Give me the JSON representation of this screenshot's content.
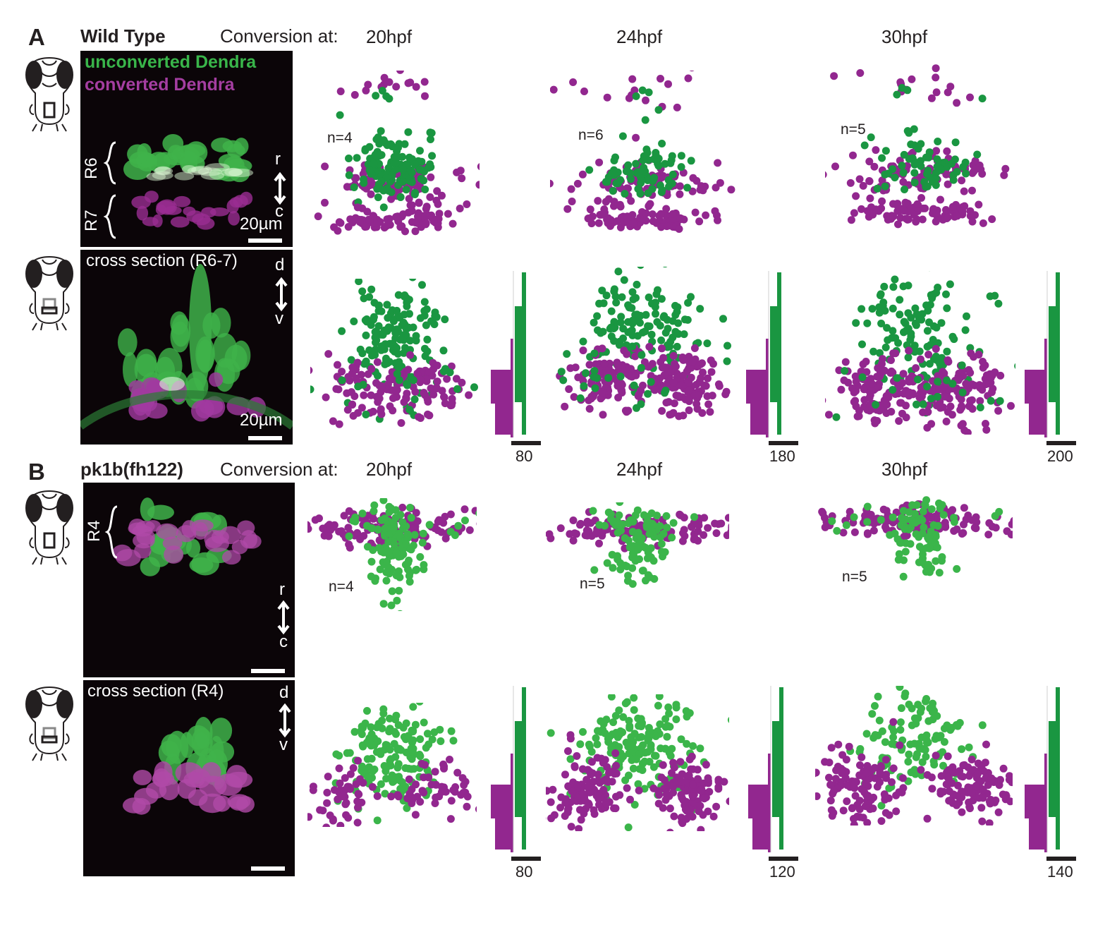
{
  "colors": {
    "green_wt": "#1a9641",
    "green_mut": "#3bb54a",
    "magenta": "#92278f",
    "bright_green": "#39b54a"
  },
  "panels": [
    {
      "letter": "A",
      "genotype": "Wild Type",
      "conversion_label": "Conversion at:",
      "timepoints": [
        "20hpf",
        "24hpf",
        "30hpf"
      ],
      "legend": {
        "unconverted": "unconverted Dendra",
        "converted": "converted Dendra"
      },
      "dorsal_image": {
        "labels": [
          "R6",
          "R7"
        ],
        "axis": [
          "r",
          "c"
        ],
        "scale_label": "20µm"
      },
      "cross_image": {
        "title": "cross section (R6-7)",
        "axis": [
          "d",
          "v"
        ],
        "scale_label": "20µm"
      },
      "n_values": [
        "n=4",
        "n=6",
        "n=5"
      ],
      "histogram_scale": [
        "80",
        "180",
        "200"
      ]
    },
    {
      "letter": "B",
      "genotype": "pk1b(fh122)",
      "conversion_label": "Conversion at:",
      "timepoints": [
        "20hpf",
        "24hpf",
        "30hpf"
      ],
      "dorsal_image": {
        "labels": [
          "R4"
        ],
        "axis": [
          "r",
          "c"
        ]
      },
      "cross_image": {
        "title": "cross section (R4)",
        "axis": [
          "d",
          "v"
        ]
      },
      "n_values": [
        "n=4",
        "n=5",
        "n=5"
      ],
      "histogram_scale": [
        "80",
        "120",
        "140"
      ]
    }
  ]
}
